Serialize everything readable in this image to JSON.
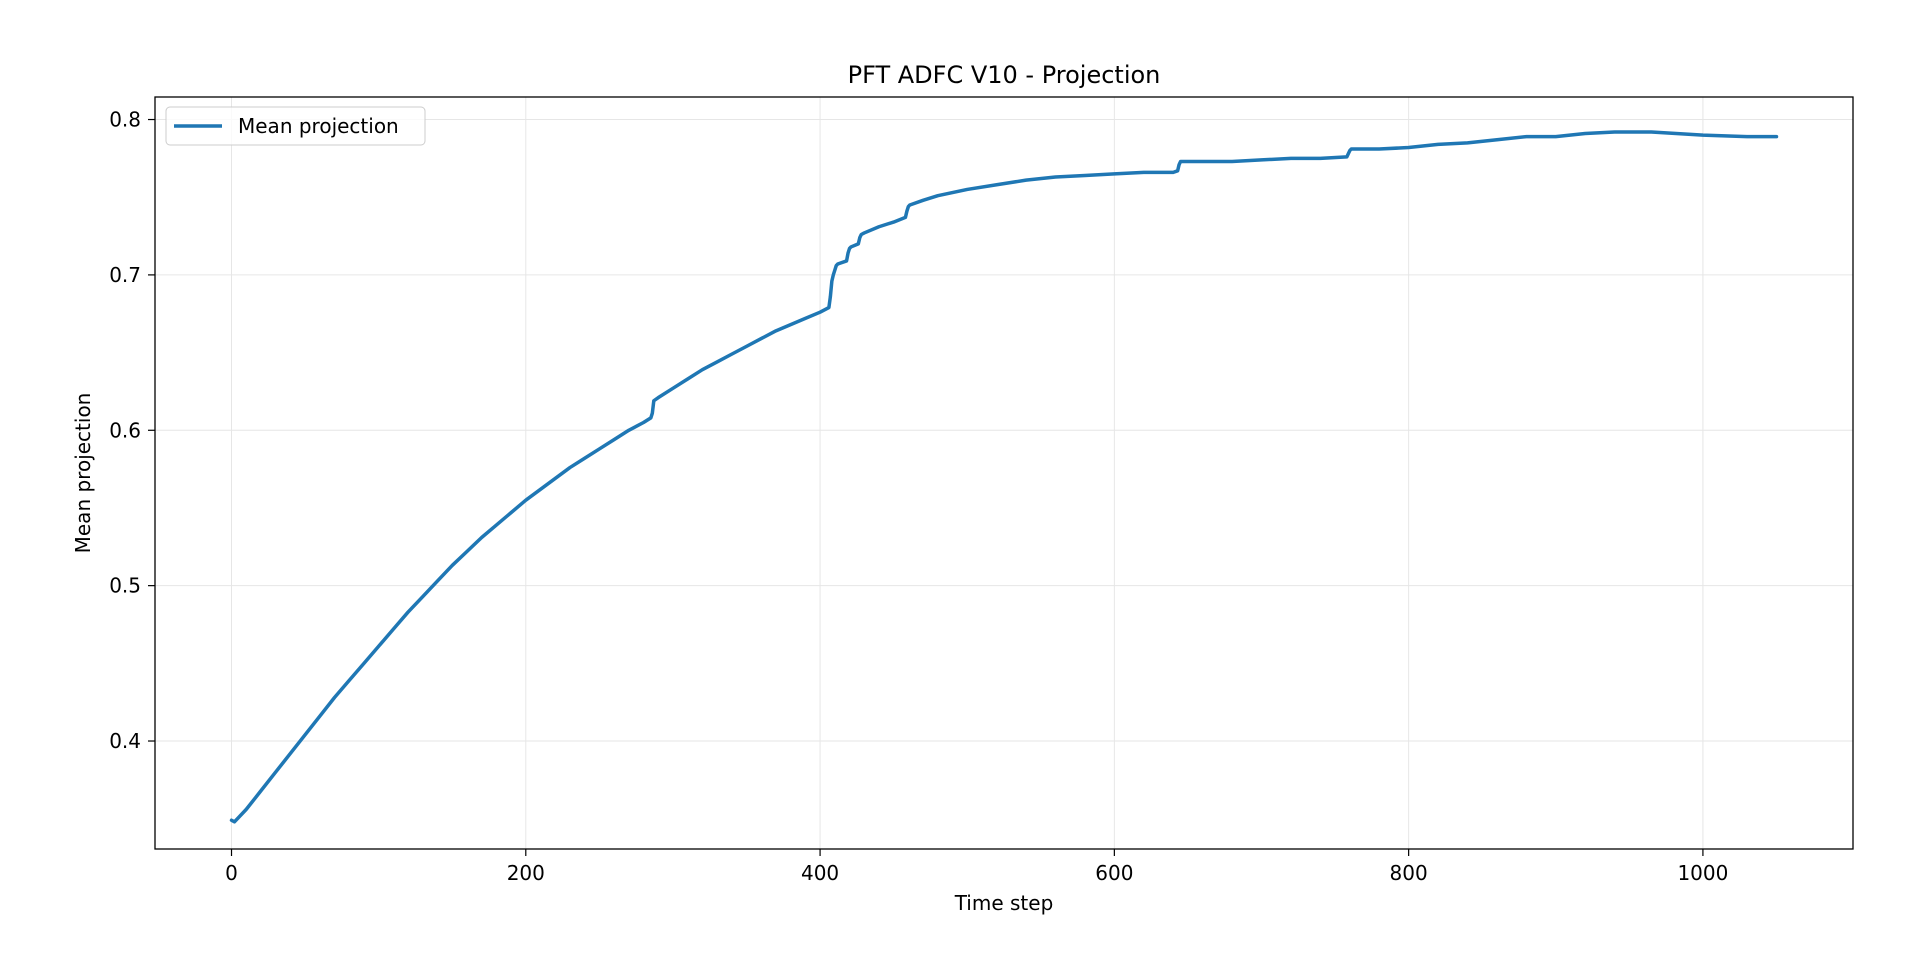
{
  "chart_data": {
    "type": "line",
    "title": "PFT ADFC V10 - Projection",
    "xlabel": "Time step",
    "ylabel": "Mean projection",
    "xlim": [
      -52,
      1102
    ],
    "ylim": [
      0.3305,
      0.8145
    ],
    "x_ticks": [
      0,
      200,
      400,
      600,
      800,
      1000
    ],
    "y_ticks": [
      0.4,
      0.5,
      0.6,
      0.7,
      0.8
    ],
    "grid": true,
    "legend": {
      "placement": "upper-left"
    },
    "series": [
      {
        "name": "Mean projection",
        "color": "#1f77b4",
        "x": [
          0,
          2,
          5,
          10,
          20,
          30,
          40,
          50,
          60,
          70,
          80,
          90,
          100,
          110,
          120,
          130,
          140,
          150,
          160,
          170,
          180,
          190,
          200,
          210,
          220,
          230,
          240,
          250,
          260,
          270,
          280,
          285,
          286,
          287,
          290,
          300,
          310,
          320,
          330,
          340,
          350,
          360,
          370,
          380,
          390,
          400,
          406,
          407,
          408,
          409,
          410,
          411,
          412,
          418,
          419,
          420,
          421,
          426,
          427,
          428,
          430,
          440,
          450,
          458,
          459,
          460,
          461,
          470,
          480,
          490,
          500,
          520,
          540,
          560,
          580,
          600,
          620,
          640,
          643,
          644,
          645,
          646,
          660,
          680,
          700,
          720,
          740,
          758,
          759,
          760,
          761,
          780,
          800,
          820,
          840,
          860,
          880,
          900,
          920,
          940,
          965,
          1000,
          1030,
          1050
        ],
        "values": [
          0.349,
          0.348,
          0.351,
          0.356,
          0.368,
          0.38,
          0.392,
          0.404,
          0.416,
          0.428,
          0.439,
          0.45,
          0.461,
          0.472,
          0.483,
          0.493,
          0.503,
          0.513,
          0.522,
          0.531,
          0.539,
          0.547,
          0.555,
          0.562,
          0.569,
          0.576,
          0.582,
          0.588,
          0.594,
          0.6,
          0.605,
          0.608,
          0.611,
          0.619,
          0.621,
          0.627,
          0.633,
          0.639,
          0.644,
          0.649,
          0.654,
          0.659,
          0.664,
          0.668,
          0.672,
          0.676,
          0.679,
          0.686,
          0.696,
          0.7,
          0.703,
          0.706,
          0.707,
          0.709,
          0.714,
          0.717,
          0.718,
          0.72,
          0.724,
          0.726,
          0.727,
          0.731,
          0.734,
          0.737,
          0.741,
          0.744,
          0.745,
          0.748,
          0.751,
          0.753,
          0.755,
          0.758,
          0.761,
          0.763,
          0.764,
          0.765,
          0.766,
          0.766,
          0.767,
          0.771,
          0.773,
          0.773,
          0.773,
          0.773,
          0.774,
          0.775,
          0.775,
          0.776,
          0.778,
          0.78,
          0.781,
          0.781,
          0.782,
          0.784,
          0.785,
          0.787,
          0.789,
          0.789,
          0.791,
          0.792,
          0.792,
          0.79,
          0.789,
          0.789
        ]
      }
    ]
  }
}
